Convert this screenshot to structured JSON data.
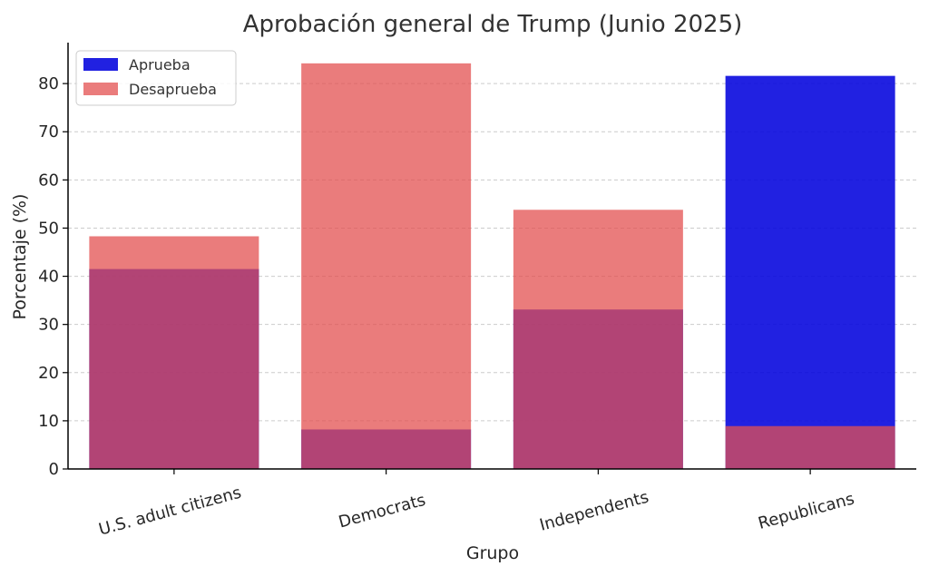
{
  "chart_data": {
    "type": "bar",
    "title": "Aprobación general de Trump (Junio 2025)",
    "xlabel": "Grupo",
    "ylabel": "Porcentaje (%)",
    "categories": [
      "U.S. adult citizens",
      "Democrats",
      "Independents",
      "Republicans"
    ],
    "series": [
      {
        "name": "Aprueba",
        "values": [
          41.5,
          8.2,
          33.1,
          81.6
        ],
        "color": "#0000dd"
      },
      {
        "name": "Desaprueba",
        "values": [
          48.3,
          84.2,
          53.8,
          8.9
        ],
        "color": "#e35050"
      }
    ],
    "overlay": true,
    "ylim": [
      0,
      88.5
    ],
    "yticks": [
      0,
      10,
      20,
      30,
      40,
      50,
      60,
      70,
      80
    ],
    "grid": true,
    "legend_position": "top-left",
    "colors": {
      "approve": "#0000dd",
      "disapprove": "#e35050",
      "grid": "#cccccc",
      "axis": "#000000"
    }
  }
}
